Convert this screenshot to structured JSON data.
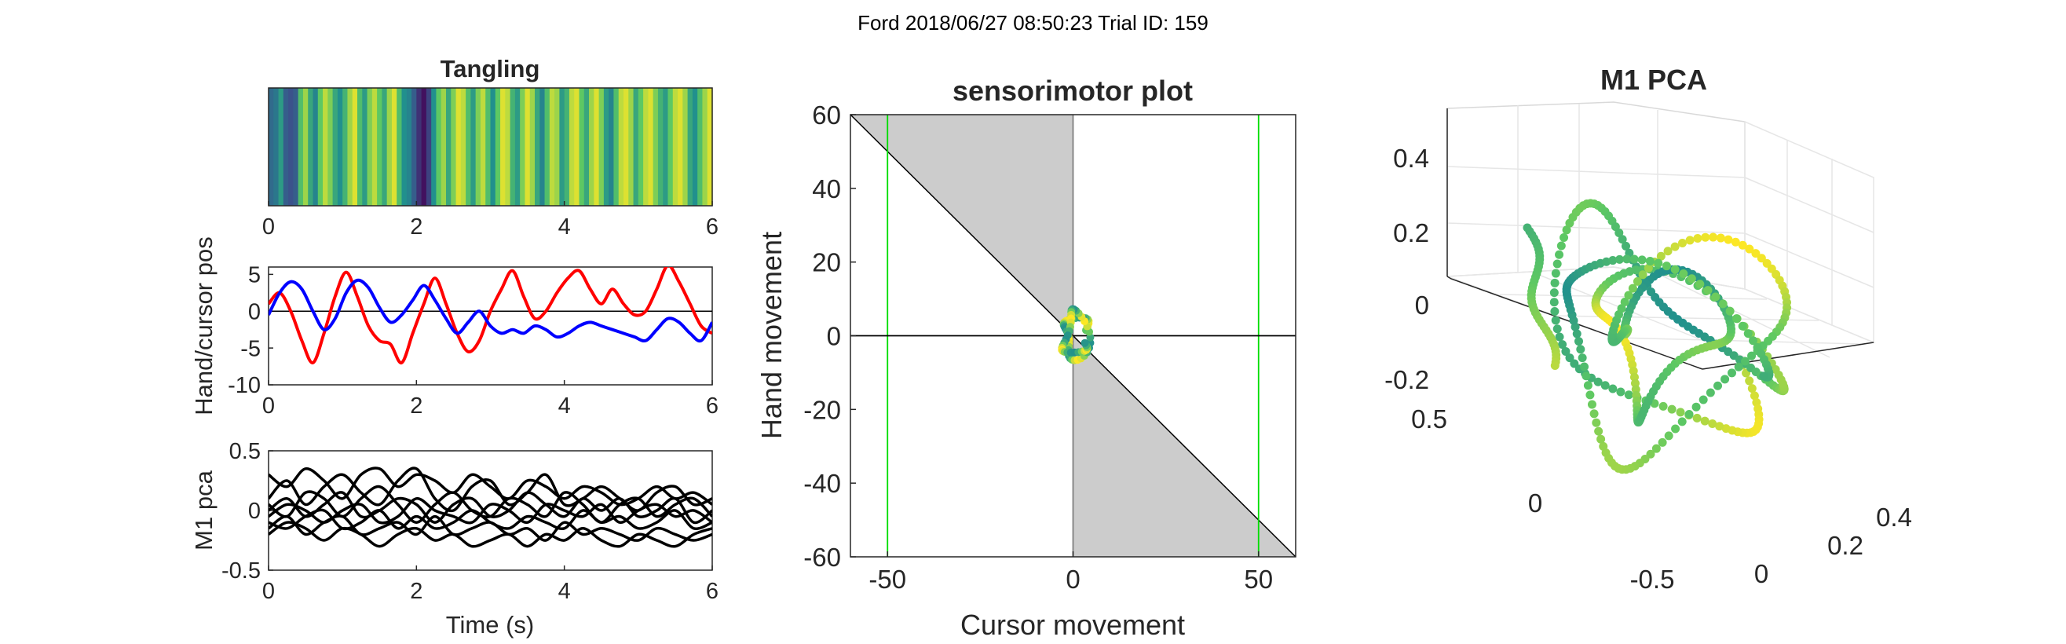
{
  "suptitle": "Ford 2018/06/27 08:50:23 Trial ID: 159",
  "chart_data": [
    {
      "type": "heatmap",
      "title": "Tangling",
      "xlim": [
        0,
        6
      ],
      "xticks": [
        "0",
        "2",
        "4",
        "6"
      ],
      "colormap": [
        "#440154",
        "#3b528b",
        "#21908d",
        "#5dc863",
        "#fde725"
      ],
      "values": [
        0.35,
        0.4,
        0.55,
        0.3,
        0.25,
        0.3,
        0.7,
        0.85,
        0.6,
        0.45,
        0.75,
        0.9,
        0.8,
        0.6,
        0.5,
        0.65,
        0.85,
        0.95,
        0.7,
        0.55,
        0.8,
        0.9,
        0.75,
        0.6,
        0.85,
        0.95,
        0.7,
        0.5,
        0.45,
        0.3,
        0.15,
        0.05,
        0.2,
        0.5,
        0.75,
        0.85,
        0.6,
        0.8,
        0.95,
        0.9,
        0.7,
        0.55,
        0.8,
        0.9,
        0.7,
        0.5,
        0.75,
        0.95,
        0.9,
        0.65,
        0.55,
        0.8,
        0.95,
        0.85,
        0.6,
        0.45,
        0.7,
        0.9,
        0.85,
        0.55,
        0.65,
        0.9,
        0.95,
        0.75,
        0.6,
        0.85,
        0.95,
        0.8,
        0.55,
        0.45,
        0.7,
        0.9,
        0.95,
        0.85,
        0.6,
        0.75,
        0.9,
        0.95,
        0.8,
        0.65,
        0.55,
        0.75,
        0.9,
        0.95,
        0.85,
        0.6,
        0.5,
        0.7,
        0.85,
        0.95
      ]
    },
    {
      "type": "line",
      "ylabel": "Hand/cursor pos",
      "xlim": [
        0,
        6
      ],
      "ylim": [
        -10,
        6
      ],
      "xticks": [
        "0",
        "2",
        "4",
        "6"
      ],
      "yticks": [
        "5",
        "0",
        "-5",
        "-10"
      ],
      "zero_line": true,
      "x": [
        0,
        0.15,
        0.3,
        0.45,
        0.6,
        0.75,
        0.9,
        1.05,
        1.2,
        1.35,
        1.5,
        1.65,
        1.8,
        1.95,
        2.1,
        2.25,
        2.4,
        2.55,
        2.7,
        2.85,
        3,
        3.15,
        3.3,
        3.45,
        3.6,
        3.75,
        3.9,
        4.05,
        4.2,
        4.35,
        4.5,
        4.65,
        4.8,
        4.95,
        5.1,
        5.25,
        5.4,
        5.55,
        5.7,
        5.85,
        6
      ],
      "series": [
        {
          "color": "#ff0000",
          "values": [
            1,
            2.5,
            0,
            -4,
            -7,
            -3,
            2,
            5.3,
            2,
            -2,
            -4,
            -4.5,
            -7,
            -3,
            1,
            4.5,
            1,
            -3,
            -5.5,
            -4,
            0,
            3,
            5.5,
            2,
            -1,
            0,
            2.5,
            4.5,
            5.5,
            3,
            1,
            3,
            1,
            -0.5,
            0,
            3,
            6.2,
            4,
            1,
            -2,
            -3
          ]
        },
        {
          "color": "#0000ff",
          "values": [
            -0.5,
            2.5,
            4,
            3,
            0,
            -2.5,
            -1,
            2.5,
            4.2,
            3.2,
            0.5,
            -1.5,
            -0.5,
            1.5,
            3.5,
            1.5,
            -1,
            -3,
            -1.5,
            0,
            -2,
            -3,
            -2.5,
            -3,
            -2,
            -2.5,
            -3.5,
            -3,
            -2,
            -1.5,
            -2,
            -2.5,
            -3,
            -3.5,
            -4,
            -2.5,
            -1,
            -1.5,
            -3,
            -4,
            -1.5
          ]
        }
      ]
    },
    {
      "type": "line",
      "ylabel": "M1 pca",
      "xlabel": "Time (s)",
      "xlim": [
        0,
        6
      ],
      "ylim": [
        -0.5,
        0.5
      ],
      "xticks": [
        "0",
        "2",
        "4",
        "6"
      ],
      "yticks": [
        "0.5",
        "0",
        "-0.5"
      ],
      "x": [
        0,
        0.25,
        0.5,
        0.75,
        1,
        1.25,
        1.5,
        1.75,
        2,
        2.25,
        2.5,
        2.75,
        3,
        3.25,
        3.5,
        3.75,
        4,
        4.25,
        4.5,
        4.75,
        5,
        5.25,
        5.5,
        5.75,
        6
      ],
      "series": [
        {
          "color": "#000000",
          "values": [
            0.3,
            0.2,
            0.35,
            0.25,
            0.1,
            0.3,
            0.35,
            0.2,
            0.3,
            0.25,
            0.15,
            0.3,
            0.2,
            0.1,
            0.25,
            0.2,
            0.1,
            0.2,
            0.15,
            0.05,
            0.1,
            0.2,
            0.1,
            0.15,
            0.05
          ]
        },
        {
          "color": "#000000",
          "values": [
            0.1,
            0.25,
            0.05,
            0.2,
            0.3,
            0.15,
            0.05,
            0.25,
            0.35,
            0.1,
            0,
            0.2,
            0.25,
            0.05,
            0.15,
            0.3,
            0.05,
            0.1,
            0.2,
            0.1,
            0,
            0.15,
            0.2,
            0.05,
            0.1
          ]
        },
        {
          "color": "#000000",
          "values": [
            0.05,
            -0.05,
            0.15,
            0.1,
            -0.05,
            0.1,
            0.2,
            0.05,
            -0.1,
            0.05,
            0.15,
            0,
            -0.05,
            0.1,
            0.05,
            -0.05,
            0.15,
            0.05,
            -0.1,
            0.05,
            0.1,
            -0.05,
            0.05,
            0.1,
            -0.05
          ]
        },
        {
          "color": "#000000",
          "values": [
            0,
            0.1,
            -0.05,
            0.05,
            0.15,
            -0.05,
            0,
            0.1,
            0.05,
            -0.1,
            0.05,
            0.1,
            -0.05,
            0,
            0.15,
            0.05,
            -0.05,
            0.1,
            0,
            0.1,
            -0.05,
            0,
            0.1,
            -0.1,
            0
          ]
        },
        {
          "color": "#000000",
          "values": [
            -0.05,
            0.05,
            0,
            -0.1,
            0,
            0.05,
            -0.1,
            -0.05,
            0.1,
            0,
            -0.05,
            -0.1,
            0.05,
            0,
            -0.1,
            0.05,
            0,
            -0.05,
            0.05,
            -0.1,
            0,
            0.05,
            -0.05,
            0,
            -0.1
          ]
        },
        {
          "color": "#000000",
          "values": [
            -0.1,
            -0.15,
            -0.05,
            0,
            -0.15,
            -0.1,
            0,
            -0.15,
            -0.05,
            -0.15,
            -0.1,
            0,
            -0.1,
            -0.15,
            -0.05,
            -0.1,
            -0.15,
            0,
            -0.1,
            -0.05,
            -0.15,
            -0.1,
            0,
            -0.15,
            -0.1
          ]
        },
        {
          "color": "#000000",
          "values": [
            -0.15,
            -0.05,
            -0.2,
            -0.1,
            -0.05,
            -0.2,
            -0.15,
            -0.1,
            -0.2,
            -0.05,
            -0.2,
            -0.15,
            -0.1,
            -0.2,
            -0.15,
            -0.25,
            -0.1,
            -0.2,
            -0.15,
            -0.2,
            -0.25,
            -0.15,
            -0.2,
            -0.25,
            -0.2
          ]
        },
        {
          "color": "#000000",
          "values": [
            -0.2,
            -0.1,
            -0.15,
            -0.25,
            -0.15,
            -0.2,
            -0.3,
            -0.2,
            -0.15,
            -0.25,
            -0.2,
            -0.3,
            -0.25,
            -0.2,
            -0.3,
            -0.2,
            -0.25,
            -0.15,
            -0.25,
            -0.3,
            -0.2,
            -0.25,
            -0.3,
            -0.2,
            -0.15
          ]
        }
      ]
    },
    {
      "type": "line",
      "title": "sensorimotor plot",
      "xlabel": "Cursor movement",
      "ylabel": "Hand movement",
      "xlim": [
        -60,
        60
      ],
      "ylim": [
        -60,
        60
      ],
      "xticks": [
        "-50",
        "0",
        "50"
      ],
      "yticks": [
        "60",
        "40",
        "20",
        "0",
        "-20",
        "-40",
        "-60"
      ],
      "shaded_regions": [
        {
          "polygon": [
            [
              -60,
              60
            ],
            [
              0,
              60
            ],
            [
              0,
              0
            ]
          ],
          "color": "#cccccc"
        },
        {
          "polygon": [
            [
              0,
              0
            ],
            [
              0,
              -60
            ],
            [
              60,
              -60
            ]
          ],
          "color": "#cccccc"
        }
      ],
      "diagonal_line": [
        [
          -60,
          60
        ],
        [
          60,
          -60
        ]
      ],
      "vertical_lines": [
        {
          "x": -50,
          "color": "#00dd00"
        },
        {
          "x": 50,
          "color": "#00dd00"
        },
        {
          "x": 0,
          "color": "#7f7f7f"
        }
      ],
      "zero_line": true,
      "scatter_loop": {
        "center": [
          0.5,
          0
        ],
        "rx": 3,
        "ry": 6,
        "n": 70
      }
    },
    {
      "type": "scatter",
      "title": "M1 PCA",
      "zlim": [
        -0.2,
        0.4
      ],
      "zticks": [
        "0.4",
        "0.2",
        "0",
        "-0.2"
      ],
      "yticks_left": [
        "0.5",
        "0"
      ],
      "yticks_right_a": [
        "0.4",
        "0.2",
        "0",
        "-0.5"
      ],
      "colormap": [
        "#21908d",
        "#5dc863",
        "#fde725"
      ],
      "n_points": 420
    }
  ]
}
